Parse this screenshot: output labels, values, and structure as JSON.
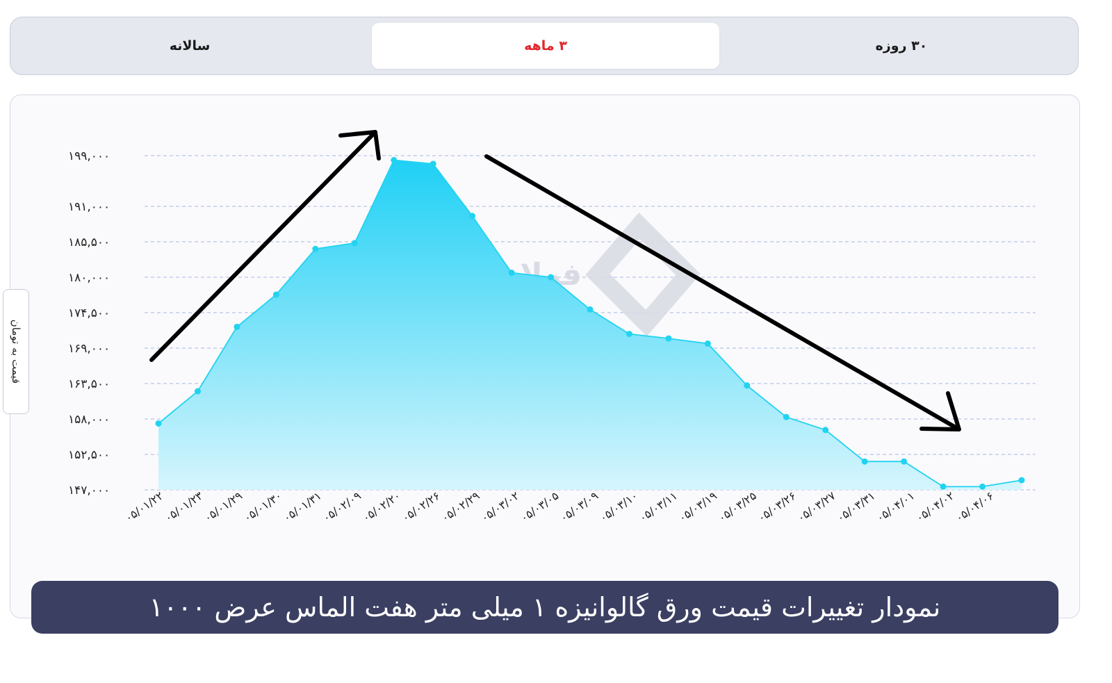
{
  "tabs": [
    {
      "label": "سالانه",
      "active": false
    },
    {
      "label": "۳ ماهه",
      "active": true
    },
    {
      "label": "۳۰ روزه",
      "active": false
    }
  ],
  "watermark": "فولادایرانیان",
  "colors": {
    "accent": "#e3262b",
    "line": "#22d3f0",
    "area_top": "#1fd0f5",
    "area_bottom": "#d6f5fd",
    "title_bg": "#3b3f62"
  },
  "chart_data": {
    "type": "area",
    "title": "نمودار تغییرات قیمت ورق گالوانیزه ۱ میلی متر هفت الماس عرض ۱۰۰۰",
    "ylabel": "قیمت به تومان",
    "xlabel": "",
    "y_ticks": [
      {
        "value": 147000,
        "label": "۱۴۷,۰۰۰"
      },
      {
        "value": 152500,
        "label": "۱۵۲,۵۰۰"
      },
      {
        "value": 158000,
        "label": "۱۵۸,۰۰۰"
      },
      {
        "value": 163500,
        "label": "۱۶۳,۵۰۰"
      },
      {
        "value": 169000,
        "label": "۱۶۹,۰۰۰"
      },
      {
        "value": 174500,
        "label": "۱۷۴,۵۰۰"
      },
      {
        "value": 180000,
        "label": "۱۸۰,۰۰۰"
      },
      {
        "value": 185500,
        "label": "۱۸۵,۵۰۰"
      },
      {
        "value": 191000,
        "label": "۱۹۱,۰۰۰"
      },
      {
        "value": 199000,
        "label": "۱۹۹,۰۰۰"
      }
    ],
    "categories": [
      "۰۵/۰۱/۲۲",
      "۰۵/۰۱/۲۳",
      "۰۵/۰۱/۲۹",
      "۰۵/۰۱/۳۰",
      "۰۵/۰۱/۳۱",
      "۰۵/۰۲/۰۹",
      "۰۵/۰۲/۲۰",
      "۰۵/۰۲/۲۶",
      "۰۵/۰۲/۲۹",
      "۰۵/۰۳/۰۲",
      "۰۵/۰۳/۰۵",
      "۰۵/۰۳/۰۹",
      "۰۵/۰۳/۱۰",
      "۰۵/۰۳/۱۱",
      "۰۵/۰۳/۱۹",
      "۰۵/۰۳/۲۵",
      "۰۵/۰۳/۲۶",
      "۰۵/۰۳/۲۷",
      "۰۵/۰۳/۳۱",
      "۰۵/۰۴/۰۱",
      "۰۵/۰۴/۰۲",
      "۰۵/۰۴/۰۶"
    ],
    "points": [
      {
        "x": "۰۵/۰۱/۲۲",
        "y": 157300
      },
      {
        "x": null,
        "y": 162300
      },
      {
        "x": "۰۵/۰۱/۲۳",
        "y": 172300
      },
      {
        "x": "۰۵/۰۱/۲۹",
        "y": 177300
      },
      {
        "x": "۰۵/۰۱/۳۰",
        "y": 184400
      },
      {
        "x": "۰۵/۰۱/۳۱",
        "y": 185300
      },
      {
        "x": "۰۵/۰۲/۰۹",
        "y": 198300
      },
      {
        "x": "۰۵/۰۲/۲۰",
        "y": 197700
      },
      {
        "x": "۰۵/۰۲/۲۶",
        "y": 189500
      },
      {
        "x": "۰۵/۰۲/۲۹",
        "y": 180700
      },
      {
        "x": "۰۵/۰۳/۰۲",
        "y": 180000
      },
      {
        "x": "۰۵/۰۳/۰۵",
        "y": 175000
      },
      {
        "x": "۰۵/۰۳/۰۹",
        "y": 171200
      },
      {
        "x": "۰۵/۰۳/۱۰",
        "y": 170500
      },
      {
        "x": "۰۵/۰۳/۱۱",
        "y": 169700
      },
      {
        "x": "۰۵/۰۳/۱۹",
        "y": 163200
      },
      {
        "x": "۰۵/۰۳/۲۵",
        "y": 158300
      },
      {
        "x": "۰۵/۰۳/۲۶",
        "y": 156300
      },
      {
        "x": "۰۵/۰۳/۲۷",
        "y": 151400
      },
      {
        "x": "۰۵/۰۳/۳۱",
        "y": 151400
      },
      {
        "x": "۰۵/۰۴/۰۱",
        "y": 147500
      },
      {
        "x": "۰۵/۰۴/۰۲",
        "y": 147500
      },
      {
        "x": "۰۵/۰۴/۰۶",
        "y": 148500
      }
    ],
    "ylim": [
      147000,
      199000
    ],
    "grid": true,
    "annotations": [
      {
        "type": "arrow",
        "direction": "up",
        "description": "upward trend arrow"
      },
      {
        "type": "arrow",
        "direction": "down",
        "description": "downward trend arrow"
      }
    ]
  }
}
